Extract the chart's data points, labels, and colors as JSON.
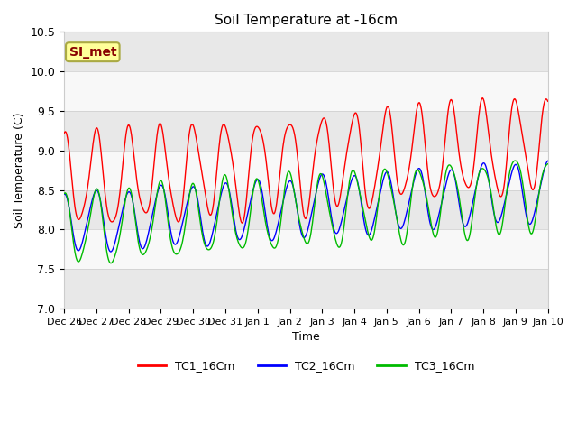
{
  "title": "Soil Temperature at -16cm",
  "xlabel": "Time",
  "ylabel": "Soil Temperature (C)",
  "ylim": [
    7.0,
    10.5
  ],
  "yticks": [
    7.0,
    7.5,
    8.0,
    8.5,
    9.0,
    9.5,
    10.0,
    10.5
  ],
  "date_labels": [
    "Dec 26",
    "Dec 27",
    "Dec 28",
    "Dec 29",
    "Dec 30",
    "Dec 31",
    "Jan 1",
    "Jan 2",
    "Jan 3",
    "Jan 4",
    "Jan 5",
    "Jan 6",
    "Jan 7",
    "Jan 8",
    "Jan 9",
    "Jan 10"
  ],
  "colors": {
    "TC1": "#ff0000",
    "TC2": "#0000ff",
    "TC3": "#00bb00"
  },
  "legend_labels": [
    "TC1_16Cm",
    "TC2_16Cm",
    "TC3_16Cm"
  ],
  "annotation_text": "SI_met",
  "annotation_color": "#880000",
  "annotation_bg": "#ffff99",
  "annotation_border": "#aaaa44",
  "band_colors": [
    "#e8e8e8",
    "#f8f8f8"
  ],
  "figsize": [
    6.4,
    4.8
  ],
  "dpi": 100
}
